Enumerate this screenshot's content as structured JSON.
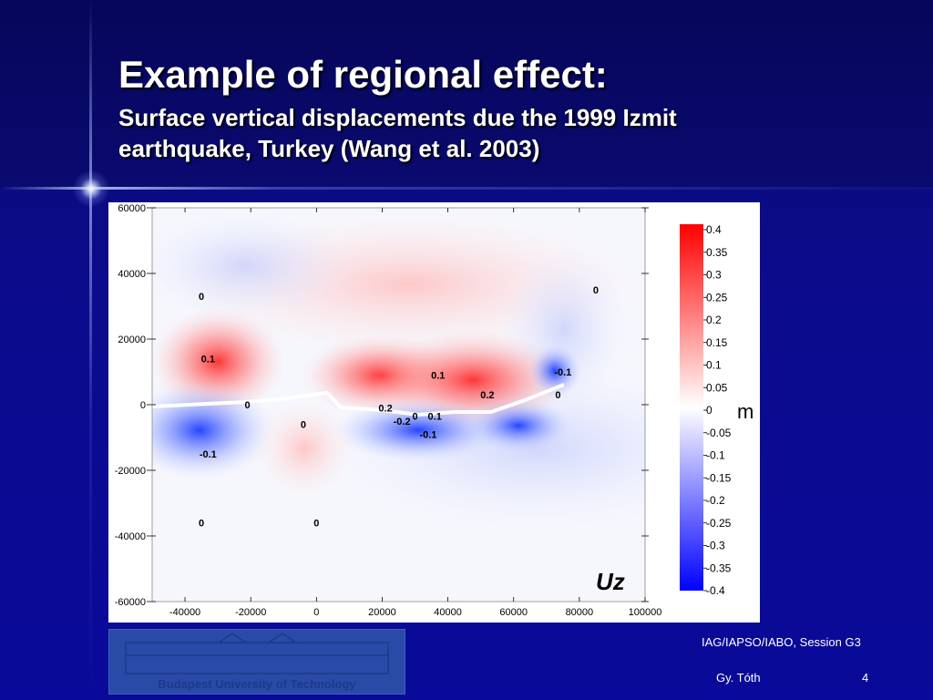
{
  "slide": {
    "title": "Example of regional effect:",
    "subtitle": "Surface vertical displacements due the 1999 Izmit earthquake, Turkey (Wang et al. 2003)",
    "session": "IAG/IAPSO/IABO, Session G3",
    "author": "Gy. Tóth",
    "page": "4",
    "logo_caption": "Budapest University of Technology"
  },
  "colors": {
    "positive": "#ff0000",
    "negative": "#0000ff",
    "neutral": "#ffffff",
    "background": "#0a0a8a"
  },
  "chart_data": {
    "type": "heatmap",
    "title": "",
    "panel_label": "Uz",
    "unit_label": "m",
    "xlim": [
      -50000,
      100000
    ],
    "ylim": [
      -60000,
      60000
    ],
    "x_ticks": [
      -40000,
      -20000,
      0,
      20000,
      40000,
      60000,
      80000,
      100000
    ],
    "x_tick_labels": [
      "-40000",
      "-20000",
      "0",
      "20000",
      "40000",
      "60000",
      "80000",
      "100000"
    ],
    "y_ticks": [
      60000,
      40000,
      20000,
      0,
      -20000,
      -40000,
      -60000
    ],
    "y_tick_labels": [
      "60000",
      "40000",
      "20000",
      "0",
      "-20000",
      "-40000",
      "-60000"
    ],
    "colorbar_ticks": [
      0.4,
      0.35,
      0.3,
      0.25,
      0.2,
      0.15,
      0.1,
      0.05,
      0,
      -0.05,
      -0.1,
      -0.15,
      -0.2,
      -0.25,
      -0.3,
      -0.35,
      -0.4
    ],
    "colorbar_labels": [
      "0.4",
      "0.35",
      "0.3",
      "0.25",
      "0.2",
      "0.15",
      "0.1",
      "0.05",
      "0",
      "-0.05",
      "-0.1",
      "-0.15",
      "-0.2",
      "-0.25",
      "-0.3",
      "-0.35",
      "-0.4"
    ],
    "value_range": [
      -0.4,
      0.4
    ],
    "contour_labels": [
      {
        "x": -35000,
        "y": 33000,
        "text": "0"
      },
      {
        "x": -33000,
        "y": 14000,
        "text": "0.1"
      },
      {
        "x": -21000,
        "y": 0,
        "text": "0"
      },
      {
        "x": -33000,
        "y": -15000,
        "text": "-0.1"
      },
      {
        "x": -4000,
        "y": -6000,
        "text": "0"
      },
      {
        "x": -35000,
        "y": -36000,
        "text": "0"
      },
      {
        "x": 0,
        "y": -36000,
        "text": "0"
      },
      {
        "x": 21000,
        "y": -1000,
        "text": "0.2"
      },
      {
        "x": 26000,
        "y": -5000,
        "text": "-0.2"
      },
      {
        "x": 30000,
        "y": -3500,
        "text": "0"
      },
      {
        "x": 36000,
        "y": -3500,
        "text": "0.1"
      },
      {
        "x": 34000,
        "y": -9000,
        "text": "-0.1"
      },
      {
        "x": 37000,
        "y": 9000,
        "text": "0.1"
      },
      {
        "x": 52000,
        "y": 3000,
        "text": "0.2"
      },
      {
        "x": 73500,
        "y": 3000,
        "text": "0"
      },
      {
        "x": 75000,
        "y": 10000,
        "text": "-0.1"
      },
      {
        "x": 85000,
        "y": 35000,
        "text": "0"
      }
    ]
  }
}
